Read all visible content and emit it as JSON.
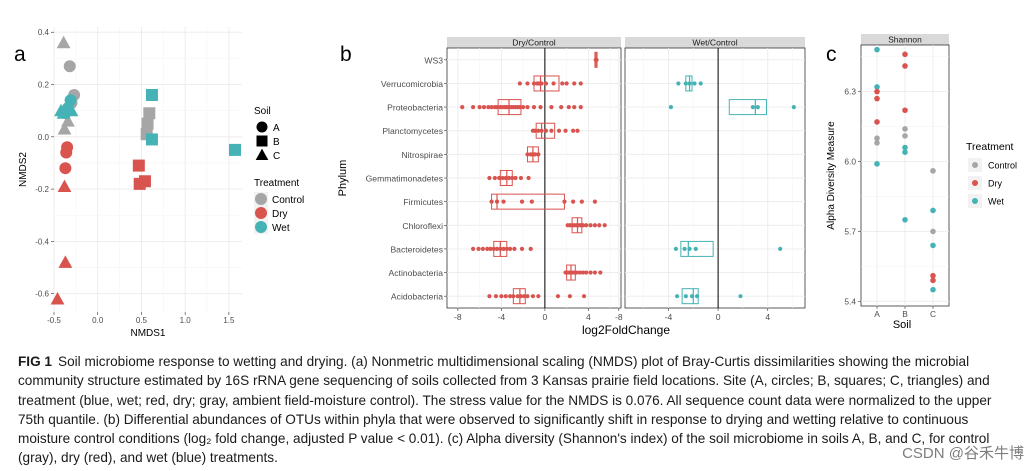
{
  "panels": [
    {
      "id": "a",
      "panel_label": "a",
      "chart_data": {
        "type": "scatter",
        "xlabel": "NMDS1",
        "ylabel": "NMDS2",
        "xlim": [
          -0.5,
          1.65
        ],
        "ylim": [
          -0.67,
          0.42
        ],
        "x_ticks": [
          -0.5,
          0.0,
          0.5,
          1.0,
          1.5
        ],
        "x_tick_labels": [
          "-0.5",
          "0.0",
          "0.5",
          "1.0",
          "1.5"
        ],
        "y_ticks": [
          0.4,
          0.2,
          0.0,
          -0.2,
          -0.4,
          -0.6
        ],
        "y_tick_labels": [
          "0.4",
          "0.2",
          "0.0",
          "-0.2",
          "-0.4",
          "-0.6"
        ],
        "legend_soil": {
          "title": "Soil",
          "entries": [
            {
              "label": "A",
              "shape": "circle"
            },
            {
              "label": "B",
              "shape": "square"
            },
            {
              "label": "C",
              "shape": "triangle"
            }
          ]
        },
        "legend_treatment": {
          "title": "Treatment",
          "entries": [
            {
              "label": "Control",
              "color": "#a6a6a6"
            },
            {
              "label": "Dry",
              "color": "#d9534f"
            },
            {
              "label": "Wet",
              "color": "#45b3b5"
            }
          ]
        },
        "points": [
          {
            "x": -0.39,
            "y": 0.36,
            "soil": "C",
            "treatment": "Control"
          },
          {
            "x": -0.32,
            "y": 0.27,
            "soil": "A",
            "treatment": "Control"
          },
          {
            "x": -0.27,
            "y": 0.16,
            "soil": "A",
            "treatment": "Control"
          },
          {
            "x": -0.3,
            "y": 0.13,
            "soil": "A",
            "treatment": "Control"
          },
          {
            "x": -0.34,
            "y": 0.06,
            "soil": "C",
            "treatment": "Control"
          },
          {
            "x": -0.38,
            "y": 0.03,
            "soil": "C",
            "treatment": "Control"
          },
          {
            "x": -0.37,
            "y": 0.09,
            "soil": "A",
            "treatment": "Control"
          },
          {
            "x": -0.34,
            "y": 0.11,
            "soil": "A",
            "treatment": "Wet"
          },
          {
            "x": -0.31,
            "y": 0.14,
            "soil": "A",
            "treatment": "Wet"
          },
          {
            "x": -0.39,
            "y": 0.09,
            "soil": "C",
            "treatment": "Wet"
          },
          {
            "x": -0.42,
            "y": 0.1,
            "soil": "C",
            "treatment": "Wet"
          },
          {
            "x": -0.3,
            "y": 0.1,
            "soil": "C",
            "treatment": "Wet"
          },
          {
            "x": -0.35,
            "y": -0.04,
            "soil": "A",
            "treatment": "Dry"
          },
          {
            "x": -0.36,
            "y": -0.06,
            "soil": "A",
            "treatment": "Dry"
          },
          {
            "x": -0.37,
            "y": -0.12,
            "soil": "A",
            "treatment": "Dry"
          },
          {
            "x": -0.38,
            "y": -0.19,
            "soil": "C",
            "treatment": "Dry"
          },
          {
            "x": -0.37,
            "y": -0.48,
            "soil": "C",
            "treatment": "Dry"
          },
          {
            "x": -0.46,
            "y": -0.62,
            "soil": "C",
            "treatment": "Dry"
          },
          {
            "x": 0.62,
            "y": 0.16,
            "soil": "B",
            "treatment": "Wet"
          },
          {
            "x": 0.59,
            "y": 0.09,
            "soil": "B",
            "treatment": "Control"
          },
          {
            "x": 0.57,
            "y": 0.05,
            "soil": "B",
            "treatment": "Control"
          },
          {
            "x": 0.56,
            "y": 0.01,
            "soil": "B",
            "treatment": "Control"
          },
          {
            "x": 0.62,
            "y": -0.01,
            "soil": "B",
            "treatment": "Wet"
          },
          {
            "x": 1.57,
            "y": -0.05,
            "soil": "B",
            "treatment": "Wet"
          },
          {
            "x": 0.47,
            "y": -0.11,
            "soil": "B",
            "treatment": "Dry"
          },
          {
            "x": 0.54,
            "y": -0.17,
            "soil": "B",
            "treatment": "Dry"
          },
          {
            "x": 0.48,
            "y": -0.18,
            "soil": "B",
            "treatment": "Dry"
          }
        ]
      }
    },
    {
      "id": "b",
      "panel_label": "b",
      "chart_data": {
        "type": "boxplot",
        "xlabel": "log2FoldChange",
        "ylabel": "Phylum",
        "facets": [
          "Dry/Control",
          "Wet/Control"
        ],
        "categories": [
          "WS3",
          "Verrucomicrobia",
          "Proteobacteria",
          "Planctomycetes",
          "Nitrospirae",
          "Gemmatimonadetes",
          "Firmicutes",
          "Chloroflexi",
          "Bacteroidetes",
          "Actinobacteria",
          "Acidobacteria"
        ],
        "xlim_dry": [
          -9,
          7
        ],
        "xlim_wet": [
          -7.5,
          7
        ],
        "x_ticks": [
          -8,
          -4,
          0,
          4
        ],
        "x_tick_labels": [
          "-8",
          "-4",
          "0",
          "4"
        ],
        "dry": {
          "color": "#d9534f",
          "boxes": [
            {
              "category": "WS3",
              "q1": 4.6,
              "median": 4.7,
              "q3": 4.8,
              "points": [
                4.7,
                4.75,
                4.68
              ]
            },
            {
              "category": "Verrucomicrobia",
              "q1": -1.0,
              "median": -0.4,
              "q3": 1.3,
              "points": [
                -2.3,
                -1.6,
                -1.0,
                -0.7,
                -0.5,
                -0.3,
                0.1,
                0.8,
                1.6,
                2.0,
                2.7,
                3.3
              ]
            },
            {
              "category": "Proteobacteria",
              "q1": -4.3,
              "median": -3.3,
              "q3": -2.2,
              "points": [
                -7.6,
                -6.6,
                -6.0,
                -5.6,
                -5.2,
                -4.9,
                -4.6,
                -4.4,
                -4.1,
                -3.9,
                -3.7,
                -3.5,
                -3.3,
                -3.1,
                -2.9,
                -2.7,
                -2.5,
                -2.3,
                -2.0,
                -1.6,
                -1.0,
                -0.4,
                0.6,
                1.5,
                2.2,
                2.7,
                3.3
              ]
            },
            {
              "category": "Planctomycetes",
              "q1": -0.8,
              "median": -0.3,
              "q3": 0.9,
              "points": [
                -1.1,
                -0.9,
                -0.6,
                -0.3,
                0.1,
                0.6,
                1.3,
                1.9,
                2.6,
                3.0
              ]
            },
            {
              "category": "Nitrospirae",
              "q1": -1.6,
              "median": -1.1,
              "q3": -0.6,
              "points": [
                -1.6,
                -1.3,
                -1.1,
                -0.9,
                -0.6
              ]
            },
            {
              "category": "Gemmatimonadetes",
              "q1": -4.1,
              "median": -3.5,
              "q3": -3.0,
              "points": [
                -5.1,
                -4.6,
                -4.2,
                -3.9,
                -3.6,
                -3.3,
                -3.0,
                -2.7,
                -2.2,
                -1.5
              ]
            },
            {
              "category": "Firmicutes",
              "q1": -4.9,
              "median": -4.4,
              "q3": 1.8,
              "points": [
                -4.9,
                -4.4,
                -3.8,
                -2.1,
                -1.2,
                1.8,
                2.6,
                3.4,
                4.6
              ]
            },
            {
              "category": "Chloroflexi",
              "q1": 2.5,
              "median": 3.0,
              "q3": 3.4,
              "points": [
                2.1,
                2.3,
                2.5,
                2.7,
                2.9,
                3.1,
                3.3,
                3.5,
                3.8,
                4.2,
                4.6,
                5.0,
                5.5
              ]
            },
            {
              "category": "Bacteroidetes",
              "q1": -4.7,
              "median": -4.1,
              "q3": -3.5,
              "points": [
                -6.6,
                -6.1,
                -5.7,
                -5.3,
                -5.0,
                -4.7,
                -4.4,
                -4.1,
                -3.8,
                -3.5,
                -3.2,
                -2.8,
                -2.1,
                -1.3
              ]
            },
            {
              "category": "Actinobacteria",
              "q1": 2.0,
              "median": 2.4,
              "q3": 2.8,
              "points": [
                1.9,
                2.1,
                2.3,
                2.5,
                2.7,
                2.9,
                3.2,
                3.5,
                3.8,
                4.2,
                4.6,
                5.1
              ]
            },
            {
              "category": "Acidobacteria",
              "q1": -2.9,
              "median": -2.3,
              "q3": -1.8,
              "points": [
                -5.1,
                -4.5,
                -4.0,
                -3.6,
                -3.2,
                -2.9,
                -2.5,
                -2.2,
                -1.9,
                -1.6,
                -1.1,
                -0.6,
                1.2,
                2.3,
                3.6
              ]
            }
          ]
        },
        "wet": {
          "color": "#45b3b5",
          "boxes": [
            {
              "category": "Verrucomicrobia",
              "q1": -2.6,
              "median": -2.3,
              "q3": -2.1,
              "points": [
                -3.2,
                -2.6,
                -2.3,
                -1.9,
                -1.4
              ]
            },
            {
              "category": "Proteobacteria",
              "q1": 0.9,
              "median": 3.0,
              "q3": 3.9,
              "points": [
                -3.8,
                2.8,
                3.2,
                6.1
              ]
            },
            {
              "category": "Bacteroidetes",
              "q1": -3.0,
              "median": -2.4,
              "q3": -0.4,
              "points": [
                -3.4,
                -2.7,
                -2.3,
                -1.8,
                5.0
              ]
            },
            {
              "category": "Acidobacteria",
              "q1": -2.9,
              "median": -2.0,
              "q3": -1.6,
              "points": [
                -3.3,
                -2.6,
                -2.1,
                -1.7,
                1.8
              ]
            }
          ]
        }
      }
    },
    {
      "id": "c",
      "panel_label": "c",
      "chart_data": {
        "type": "scatter",
        "title": "Shannon",
        "xlabel": "Soil",
        "ylabel": "Alpha Diversity Measure",
        "categories": [
          "A",
          "B",
          "C"
        ],
        "ylim": [
          5.38,
          6.5
        ],
        "y_ticks": [
          5.4,
          5.7,
          6.0,
          6.3
        ],
        "y_tick_labels": [
          "5.4",
          "5.7",
          "6.0",
          "6.3"
        ],
        "legend": {
          "title": "Treatment",
          "entries": [
            {
              "label": "Control",
              "color": "#a6a6a6"
            },
            {
              "label": "Dry",
              "color": "#d9534f"
            },
            {
              "label": "Wet",
              "color": "#45b3b5"
            }
          ]
        },
        "points": [
          {
            "x": "A",
            "y": 6.48,
            "treatment": "Wet"
          },
          {
            "x": "A",
            "y": 6.32,
            "treatment": "Wet"
          },
          {
            "x": "A",
            "y": 6.3,
            "treatment": "Dry"
          },
          {
            "x": "A",
            "y": 6.27,
            "treatment": "Dry"
          },
          {
            "x": "A",
            "y": 6.17,
            "treatment": "Dry"
          },
          {
            "x": "A",
            "y": 6.1,
            "treatment": "Control"
          },
          {
            "x": "A",
            "y": 6.08,
            "treatment": "Control"
          },
          {
            "x": "A",
            "y": 5.99,
            "treatment": "Wet"
          },
          {
            "x": "B",
            "y": 6.46,
            "treatment": "Dry"
          },
          {
            "x": "B",
            "y": 6.41,
            "treatment": "Dry"
          },
          {
            "x": "B",
            "y": 6.22,
            "treatment": "Dry"
          },
          {
            "x": "B",
            "y": 6.14,
            "treatment": "Control"
          },
          {
            "x": "B",
            "y": 6.11,
            "treatment": "Control"
          },
          {
            "x": "B",
            "y": 6.06,
            "treatment": "Wet"
          },
          {
            "x": "B",
            "y": 6.04,
            "treatment": "Wet"
          },
          {
            "x": "B",
            "y": 5.75,
            "treatment": "Wet"
          },
          {
            "x": "C",
            "y": 5.96,
            "treatment": "Control"
          },
          {
            "x": "C",
            "y": 5.79,
            "treatment": "Wet"
          },
          {
            "x": "C",
            "y": 5.7,
            "treatment": "Control"
          },
          {
            "x": "C",
            "y": 5.64,
            "treatment": "Wet"
          },
          {
            "x": "C",
            "y": 5.51,
            "treatment": "Dry"
          },
          {
            "x": "C",
            "y": 5.49,
            "treatment": "Dry"
          },
          {
            "x": "C",
            "y": 5.45,
            "treatment": "Wet"
          }
        ]
      }
    }
  ],
  "caption": {
    "label": "FIG 1",
    "text": "Soil microbiome response to wetting and drying. (a) Nonmetric multidimensional scaling (NMDS) plot of Bray-Curtis dissimilarities showing the microbial community structure estimated by 16S rRNA gene sequencing of soils collected from 3 Kansas prairie field locations. Site (A, circles; B, squares; C, triangles) and treatment (blue, wet; red, dry; gray, ambient field-moisture control). The stress value for the NMDS is 0.076. All sequence count data were normalized to the upper 75th quantile. (b) Differential abundances of OTUs within phyla that were observed to significantly shift in response to drying and wetting relative to continuous moisture control conditions (log₂ fold change, adjusted P value < 0.01). (c) Alpha diversity (Shannon's index) of the soil microbiome in soils A, B, and C, for control (gray), dry (red), and wet (blue) treatments."
  },
  "watermark": "CSDN @谷禾牛博"
}
